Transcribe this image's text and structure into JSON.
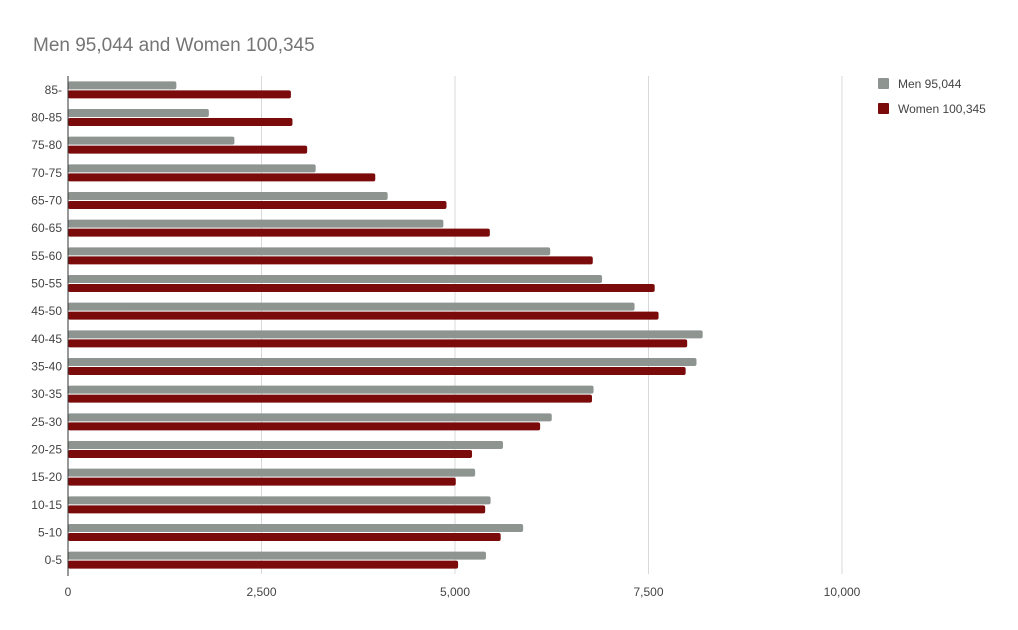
{
  "chart_data": {
    "type": "bar",
    "orientation": "horizontal",
    "title": "Men 95,044 and Women 100,345",
    "xlabel": "",
    "ylabel": "",
    "xlim": [
      0,
      10000
    ],
    "x_ticks": [
      0,
      2500,
      5000,
      7500,
      10000
    ],
    "x_tick_labels": [
      "0",
      "2,500",
      "5,000",
      "7,500",
      "10,000"
    ],
    "grid": true,
    "legend_position": "top-right",
    "categories": [
      "85-",
      "80-85",
      "75-80",
      "70-75",
      "65-70",
      "60-65",
      "55-60",
      "50-55",
      "45-50",
      "40-45",
      "35-40",
      "30-35",
      "25-30",
      "20-25",
      "15-20",
      "10-15",
      "5-10",
      "0-5"
    ],
    "series": [
      {
        "name": "Men 95,044",
        "color": "#8e9591",
        "values": [
          1400,
          1820,
          2150,
          3200,
          4130,
          4850,
          6230,
          6900,
          7320,
          8200,
          8120,
          6790,
          6250,
          5620,
          5260,
          5460,
          5880,
          5400
        ]
      },
      {
        "name": "Women 100,345",
        "color": "#7b0b0b",
        "values": [
          2880,
          2900,
          3090,
          3970,
          4890,
          5450,
          6780,
          7580,
          7630,
          8000,
          7980,
          6770,
          6100,
          5220,
          5010,
          5390,
          5590,
          5040
        ]
      }
    ]
  }
}
